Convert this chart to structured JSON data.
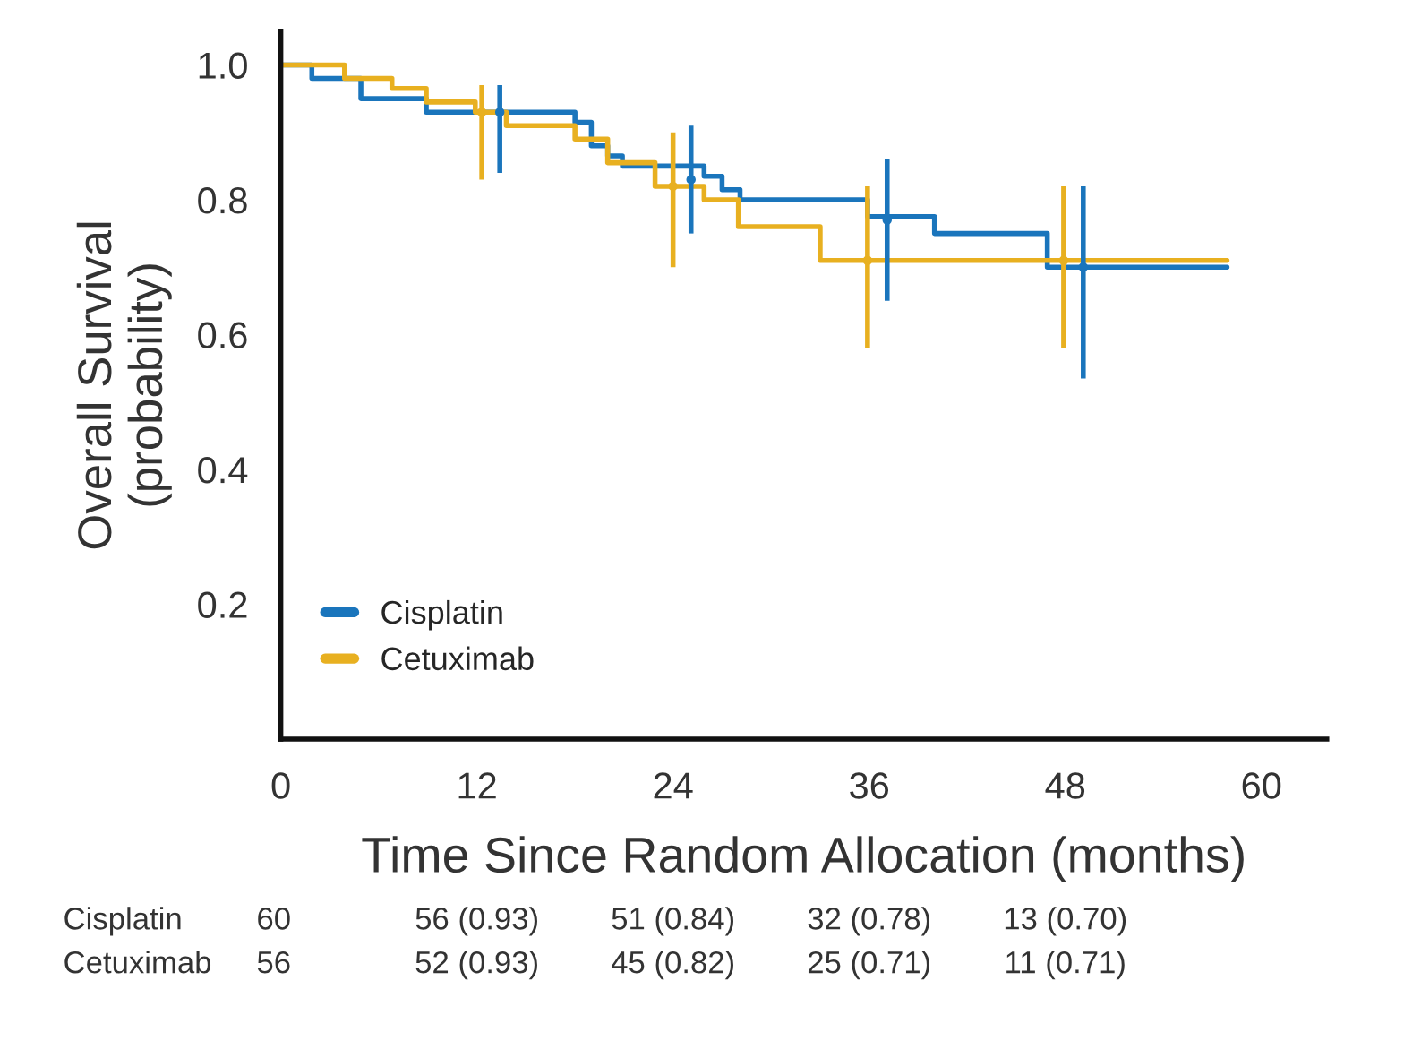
{
  "chart_data": {
    "type": "step",
    "xlabel": "Time Since Random Allocation (months)",
    "ylabel": "Overall Survival\n(probability)",
    "xlim": [
      0,
      64
    ],
    "xticks": [
      0,
      12,
      24,
      36,
      48,
      60
    ],
    "ylim": [
      0,
      1.05
    ],
    "yticks": [
      0.2,
      0.4,
      0.6,
      {
        "value": 0.8,
        "label": "0.8"
      },
      {
        "value": 1,
        "label": "1.0"
      }
    ],
    "grid": false,
    "legend": "bottom left",
    "line_style": "solid",
    "series": [
      {
        "name": "Cisplatin",
        "color": "#1a75bc",
        "x": [
          0,
          1.9,
          4.9,
          8.9,
          18.0,
          19.0,
          20.0,
          20.9,
          25.9,
          27.0,
          28.1,
          35.9,
          40.0,
          46.9,
          57.9
        ],
        "values": [
          1.0,
          0.98,
          0.95,
          0.93,
          0.915,
          0.88,
          0.865,
          0.85,
          0.835,
          0.815,
          0.8,
          0.775,
          0.75,
          0.7,
          0.7
        ]
      },
      {
        "name": "Cetuximab",
        "color": "#e8b020",
        "x": [
          0,
          3.9,
          6.8,
          8.9,
          11.9,
          13.8,
          18.0,
          20.0,
          22.9,
          25.9,
          28.0,
          33.0,
          57.9
        ],
        "values": [
          1.0,
          0.98,
          0.965,
          0.945,
          0.93,
          0.91,
          0.89,
          0.855,
          0.82,
          0.8,
          0.76,
          0.71,
          0.71
        ]
      },
      {
        "type": "scatter",
        "color": "#1a75bc",
        "x": [
          13.4,
          25.1,
          37.1,
          49.1
        ],
        "values": [
          0.93,
          0.83,
          0.77,
          0.7
        ],
        "errors": [
          [
            0.84,
            0.97
          ],
          [
            0.75,
            0.91
          ],
          [
            0.65,
            0.86
          ],
          [
            0.535,
            0.82
          ]
        ]
      },
      {
        "type": "scatter",
        "color": "#e8b020",
        "x": [
          12.3,
          24.0,
          35.9,
          47.9
        ],
        "values": [
          0.93,
          0.82,
          0.71,
          0.71
        ],
        "errors": [
          [
            0.83,
            0.97
          ],
          [
            0.7,
            0.9
          ],
          [
            0.58,
            0.82
          ],
          [
            0.58,
            0.82
          ]
        ]
      }
    ],
    "annotations": [
      "Cisplatin",
      "60",
      "56 (0.93)",
      "51 (0.84)",
      "32 (0.78)",
      "13 (0.70)",
      "Cetuximab",
      "56",
      "52 (0.93)",
      "45 (0.82)",
      "25 (0.71)",
      "11 (0.71)"
    ]
  }
}
